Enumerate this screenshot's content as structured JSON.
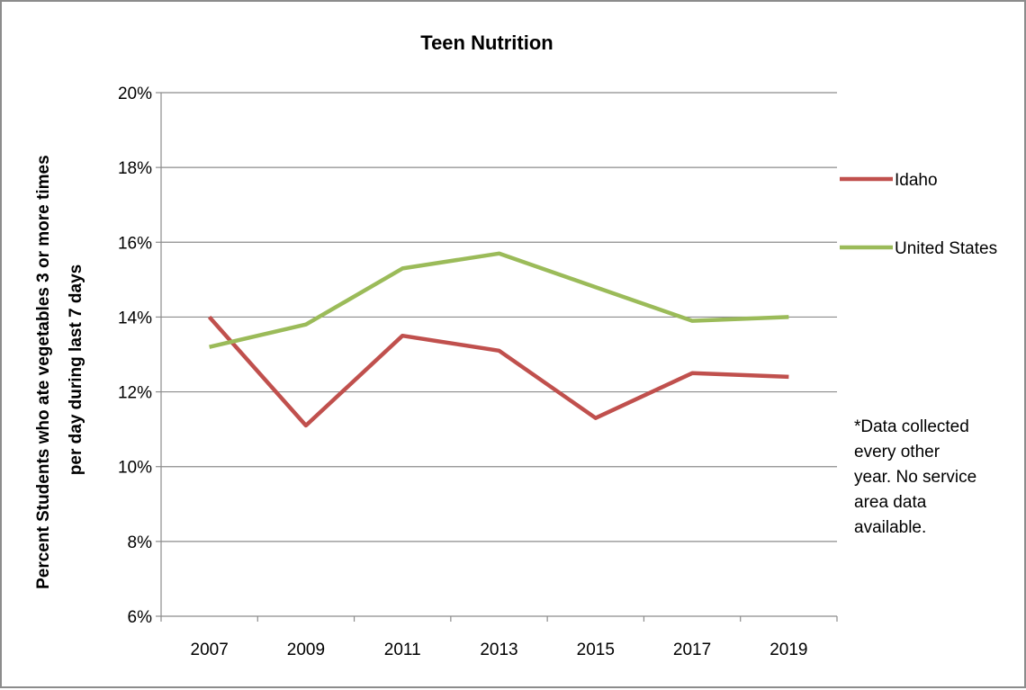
{
  "chart_data": {
    "type": "line",
    "title": "Teen Nutrition",
    "xlabel": "",
    "ylabel_lines": [
      "Percent Students who ate vegetables 3 or more times",
      "per day during last 7 days"
    ],
    "categories": [
      "2007",
      "2009",
      "2011",
      "2013",
      "2015",
      "2017",
      "2019"
    ],
    "ylim": [
      6,
      20
    ],
    "ytick_step": 2,
    "ytick_labels": [
      "6%",
      "8%",
      "10%",
      "12%",
      "14%",
      "16%",
      "18%",
      "20%"
    ],
    "grid": true,
    "legend_placement": "right",
    "series": [
      {
        "name": "Idaho",
        "color": "#c0504d",
        "values": [
          14.0,
          11.1,
          13.5,
          13.1,
          11.3,
          12.5,
          12.4
        ]
      },
      {
        "name": "United States",
        "color": "#9bbb59",
        "values": [
          13.2,
          13.8,
          15.3,
          15.7,
          14.8,
          13.9,
          14.0
        ]
      }
    ],
    "annotation_lines": [
      "*Data collected",
      "every other",
      "year. No service",
      "area data",
      "available."
    ]
  }
}
